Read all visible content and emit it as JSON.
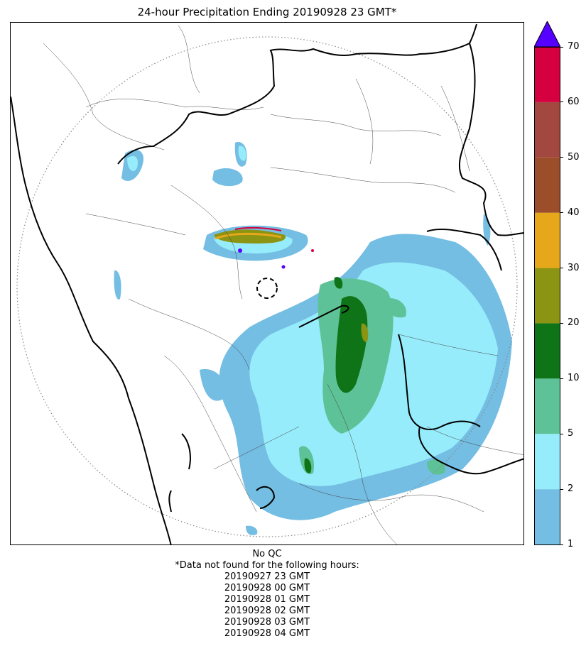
{
  "title": "24-hour Precipitation Ending 20190928 23 GMT*",
  "colorbar": {
    "labels": [
      "1",
      "2",
      "5",
      "10",
      "20",
      "30",
      "40",
      "50",
      "60",
      "70"
    ],
    "colors": [
      "#74bde3",
      "#96ecfb",
      "#5ec298",
      "#0f7418",
      "#8c9414",
      "#e6a81a",
      "#9c4d2a",
      "#a34840",
      "#d40040"
    ],
    "over_color": "#5600ff"
  },
  "footnotes": {
    "qc": "No QC",
    "missing_header": "*Data not found for the following hours:",
    "missing_hours": [
      "20190927 23 GMT",
      "20190928 00 GMT",
      "20190928 01 GMT",
      "20190928 02 GMT",
      "20190928 03 GMT",
      "20190928 04 GMT"
    ]
  }
}
